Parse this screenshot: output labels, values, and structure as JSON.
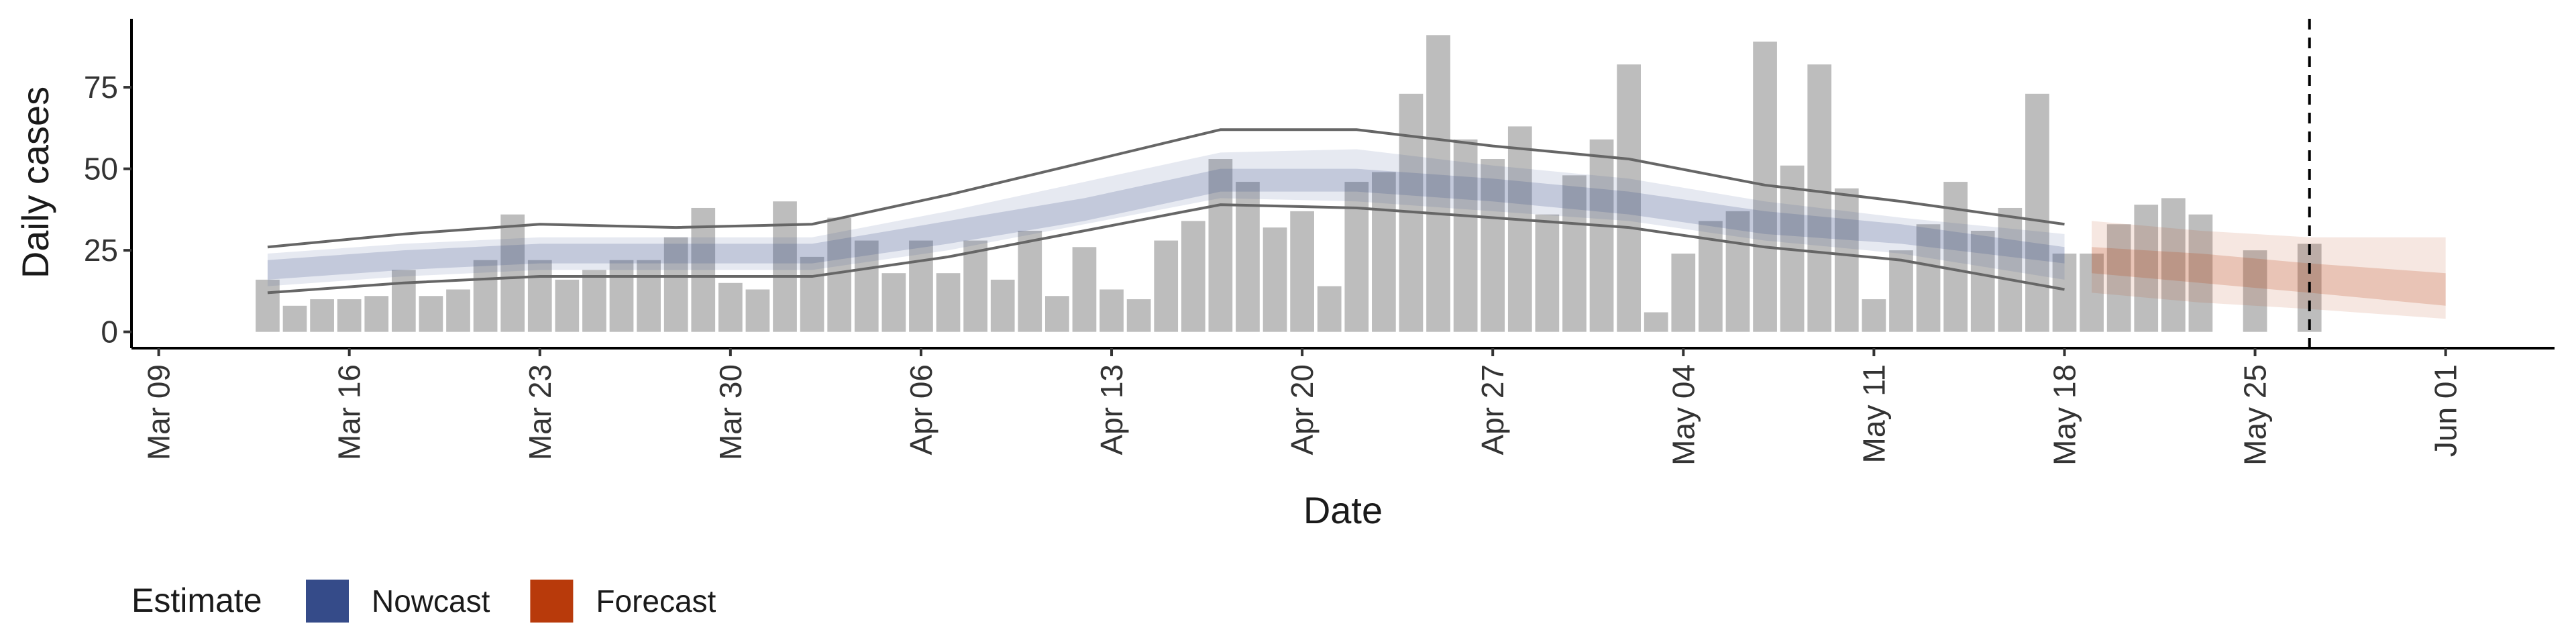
{
  "chart_data": {
    "type": "bar",
    "x_label": "Date",
    "y_label": "Daily cases",
    "color": "#bdbdbd",
    "x": [
      "Mar 13",
      "Mar 14",
      "Mar 15",
      "Mar 16",
      "Mar 17",
      "Mar 18",
      "Mar 19",
      "Mar 20",
      "Mar 21",
      "Mar 22",
      "Mar 23",
      "Mar 24",
      "Mar 25",
      "Mar 26",
      "Mar 27",
      "Mar 28",
      "Mar 29",
      "Mar 30",
      "Mar 31",
      "Apr 01",
      "Apr 02",
      "Apr 03",
      "Apr 04",
      "Apr 05",
      "Apr 06",
      "Apr 07",
      "Apr 08",
      "Apr 09",
      "Apr 10",
      "Apr 11",
      "Apr 12",
      "Apr 13",
      "Apr 14",
      "Apr 15",
      "Apr 16",
      "Apr 17",
      "Apr 18",
      "Apr 19",
      "Apr 20",
      "Apr 21",
      "Apr 22",
      "Apr 23",
      "Apr 24",
      "Apr 25",
      "Apr 26",
      "Apr 27",
      "Apr 28",
      "Apr 29",
      "Apr 30",
      "May 01",
      "May 02",
      "May 03",
      "May 04",
      "May 05",
      "May 06",
      "May 07",
      "May 08",
      "May 09",
      "May 10",
      "May 11",
      "May 12",
      "May 13",
      "May 14",
      "May 15",
      "May 16",
      "May 17",
      "May 18",
      "May 19",
      "May 20",
      "May 21",
      "May 22",
      "May 23",
      "May 25",
      "May 27"
    ],
    "values": [
      16,
      8,
      10,
      10,
      11,
      19,
      11,
      13,
      22,
      36,
      22,
      16,
      19,
      22,
      22,
      29,
      38,
      15,
      13,
      40,
      23,
      35,
      28,
      18,
      28,
      18,
      28,
      16,
      31,
      11,
      26,
      13,
      10,
      28,
      34,
      53,
      46,
      32,
      37,
      14,
      46,
      49,
      73,
      91,
      59,
      53,
      63,
      36,
      48,
      59,
      82,
      6,
      24,
      34,
      37,
      89,
      51,
      82,
      44,
      10,
      25,
      33,
      46,
      31,
      38,
      73,
      24,
      24,
      33,
      39,
      41,
      36,
      25,
      27
    ],
    "bands": [
      {
        "name": "Nowcast",
        "color": "#354b89",
        "x": [
          "Mar 13",
          "Mar 18",
          "Mar 23",
          "Mar 28",
          "Apr 02",
          "Apr 07",
          "Apr 12",
          "Apr 17",
          "Apr 22",
          "Apr 27",
          "May 02",
          "May 07",
          "May 12",
          "May 18"
        ],
        "outer_upper": [
          24,
          27,
          29,
          29,
          29,
          37,
          46,
          55,
          56,
          51,
          47,
          40,
          35,
          30
        ],
        "outer_lower": [
          14,
          17,
          19,
          19,
          19,
          25,
          33,
          41,
          40,
          37,
          34,
          28,
          24,
          16
        ],
        "inner_upper": [
          22,
          25,
          27,
          27,
          27,
          34,
          41,
          50,
          50,
          47,
          43,
          37,
          33,
          26
        ],
        "inner_lower": [
          16,
          19,
          21,
          21,
          21,
          27,
          34,
          43,
          43,
          40,
          36,
          30,
          27,
          21
        ],
        "line_upper": [
          26,
          30,
          33,
          32,
          33,
          42,
          52,
          62,
          62,
          57,
          53,
          45,
          40,
          33
        ],
        "line_lower": [
          12,
          15,
          17,
          17,
          17,
          23,
          31,
          39,
          38,
          35,
          32,
          26,
          22,
          13
        ]
      },
      {
        "name": "Forecast",
        "color": "#b83a0b",
        "x": [
          "May 19",
          "May 23",
          "May 27",
          "Jun 01"
        ],
        "outer_upper": [
          34,
          31,
          29,
          29
        ],
        "outer_lower": [
          12,
          9,
          7,
          4
        ],
        "inner_upper": [
          26,
          24,
          21,
          18
        ],
        "inner_lower": [
          18,
          15,
          12,
          8
        ]
      }
    ],
    "vline": "May 27",
    "legend_title": "Estimate",
    "xlim": [
      "Mar 08",
      "Jun 05"
    ],
    "xticks": [
      "Mar 09",
      "Mar 16",
      "Mar 23",
      "Mar 30",
      "Apr 06",
      "Apr 13",
      "Apr 20",
      "Apr 27",
      "May 04",
      "May 11",
      "May 18",
      "May 25",
      "Jun 01"
    ],
    "ylim": [
      -5,
      96
    ],
    "yticks": [
      0,
      25,
      50,
      75
    ],
    "grid": false
  }
}
